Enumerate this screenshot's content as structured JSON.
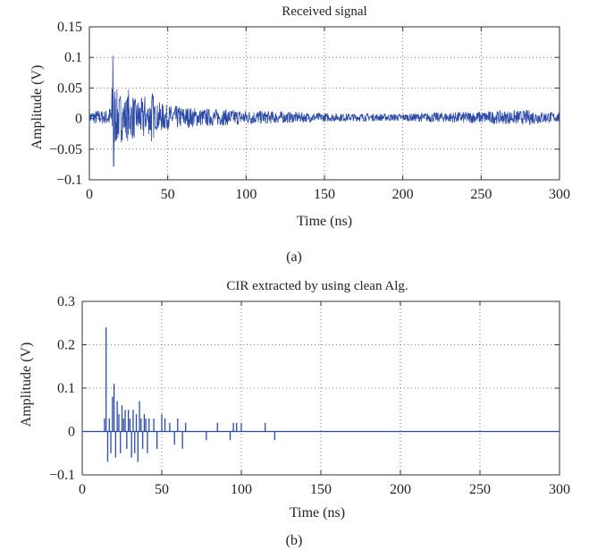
{
  "chart_data": [
    {
      "type": "line",
      "panel_label": "(a)",
      "title": "Received signal",
      "xlabel": "Time (ns)",
      "ylabel": "Amplitude (V)",
      "xlim": [
        0,
        300
      ],
      "ylim": [
        -0.1,
        0.15
      ],
      "x_ticks": [
        0,
        50,
        100,
        150,
        200,
        250,
        300
      ],
      "x_tick_labels": [
        "0",
        "50",
        "100",
        "150",
        "200",
        "250",
        "300"
      ],
      "y_ticks": [
        -0.1,
        -0.05,
        0,
        0.05,
        0.1,
        0.15
      ],
      "y_tick_labels": [
        "−0.1",
        "−0.05",
        "0",
        "0.05",
        "0.1",
        "0.15"
      ],
      "grid": true,
      "line_color": "#2b4aa8",
      "series": [
        {
          "x": [
            0,
            5,
            10,
            14,
            15,
            15.5,
            16,
            17,
            18,
            19,
            20,
            22,
            24,
            25,
            26,
            28,
            30,
            32,
            34,
            35,
            36,
            38,
            40,
            42,
            45,
            50,
            60,
            70,
            80,
            90,
            100,
            120,
            150,
            180,
            200,
            220,
            250,
            280,
            300
          ],
          "y": [
            0.01,
            0.012,
            0.011,
            0.02,
            0.103,
            -0.078,
            0.06,
            -0.04,
            0.05,
            -0.035,
            0.045,
            -0.03,
            0.035,
            0.048,
            -0.03,
            0.04,
            -0.025,
            0.035,
            -0.03,
            0.05,
            -0.02,
            0.03,
            0.05,
            -0.02,
            0.025,
            0.02,
            0.018,
            0.015,
            0.014,
            0.013,
            0.012,
            0.01,
            0.007,
            0.006,
            0.006,
            0.008,
            0.01,
            0.012,
            0.008
          ]
        }
      ]
    },
    {
      "type": "stem",
      "panel_label": "(b)",
      "title": "CIR extracted by using clean Alg.",
      "xlabel": "Time (ns)",
      "ylabel": "Amplitude (V)",
      "xlim": [
        0,
        300
      ],
      "ylim": [
        -0.1,
        0.3
      ],
      "x_ticks": [
        0,
        50,
        100,
        150,
        200,
        250,
        300
      ],
      "x_tick_labels": [
        "0",
        "50",
        "100",
        "150",
        "200",
        "250",
        "300"
      ],
      "y_ticks": [
        -0.1,
        0,
        0.1,
        0.2,
        0.3
      ],
      "y_tick_labels": [
        "−0.1",
        "0",
        "0.1",
        "0.2",
        "0.3"
      ],
      "grid": true,
      "line_color": "#2b4aa8",
      "series": [
        {
          "x": [
            14,
            15,
            16,
            17,
            18,
            19,
            20,
            21,
            22,
            23,
            24,
            25,
            26,
            27,
            28,
            29,
            30,
            31,
            32,
            33,
            34,
            35,
            36,
            37,
            38,
            39,
            40,
            41,
            42,
            45,
            47,
            50,
            52,
            55,
            58,
            60,
            63,
            65,
            78,
            85,
            93,
            95,
            97,
            100,
            115,
            121
          ],
          "y": [
            0.03,
            0.24,
            -0.07,
            0.03,
            -0.05,
            0.08,
            0.11,
            -0.06,
            0.07,
            0.04,
            -0.05,
            0.06,
            0.03,
            0.05,
            -0.04,
            0.05,
            0.03,
            -0.06,
            0.05,
            -0.05,
            0.04,
            -0.07,
            0.07,
            0.03,
            -0.04,
            0.04,
            0.03,
            -0.05,
            0.03,
            0.03,
            -0.04,
            0.04,
            0.03,
            0.02,
            -0.03,
            0.03,
            -0.04,
            0.02,
            -0.02,
            0.02,
            -0.02,
            0.02,
            0.02,
            0.02,
            0.02,
            -0.02
          ]
        }
      ]
    }
  ]
}
